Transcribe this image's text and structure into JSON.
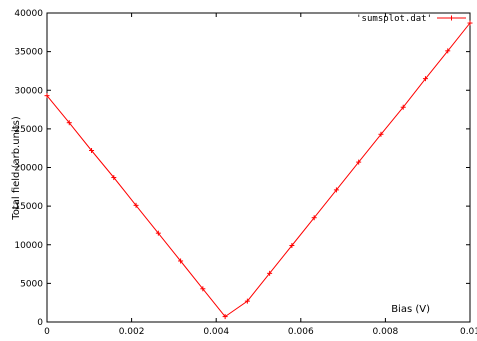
{
  "chart_data": {
    "type": "line",
    "xlabel": "Bias (V)",
    "ylabel": "Total field (arb.units)",
    "xlim": [
      0,
      0.01
    ],
    "ylim": [
      0,
      40000
    ],
    "x_ticks": [
      0,
      0.002,
      0.004,
      0.006,
      0.008,
      0.01
    ],
    "x_tick_labels": [
      "0",
      "0.002",
      "0.004",
      "0.006",
      "0.008",
      "0.01"
    ],
    "y_ticks": [
      0,
      5000,
      10000,
      15000,
      20000,
      25000,
      30000,
      35000,
      40000
    ],
    "y_tick_labels": [
      "0",
      "5000",
      "10000",
      "15000",
      "20000",
      "25000",
      "30000",
      "35000",
      "40000"
    ],
    "grid": false,
    "legend_position": "top-right",
    "line_color": "#ff0000",
    "series": [
      {
        "name": "'sumsplot.dat'",
        "x": [
          0,
          0.000526,
          0.001053,
          0.001579,
          0.002105,
          0.002632,
          0.003158,
          0.003684,
          0.004211,
          0.004737,
          0.005263,
          0.005789,
          0.006316,
          0.006842,
          0.007368,
          0.007895,
          0.008421,
          0.008947,
          0.009474,
          0.01
        ],
        "y": [
          29300,
          25800,
          22200,
          18700,
          15100,
          11500,
          7900,
          4300,
          700,
          2700,
          6300,
          9900,
          13500,
          17100,
          20700,
          24300,
          27800,
          31500,
          35100,
          38700
        ]
      }
    ]
  }
}
